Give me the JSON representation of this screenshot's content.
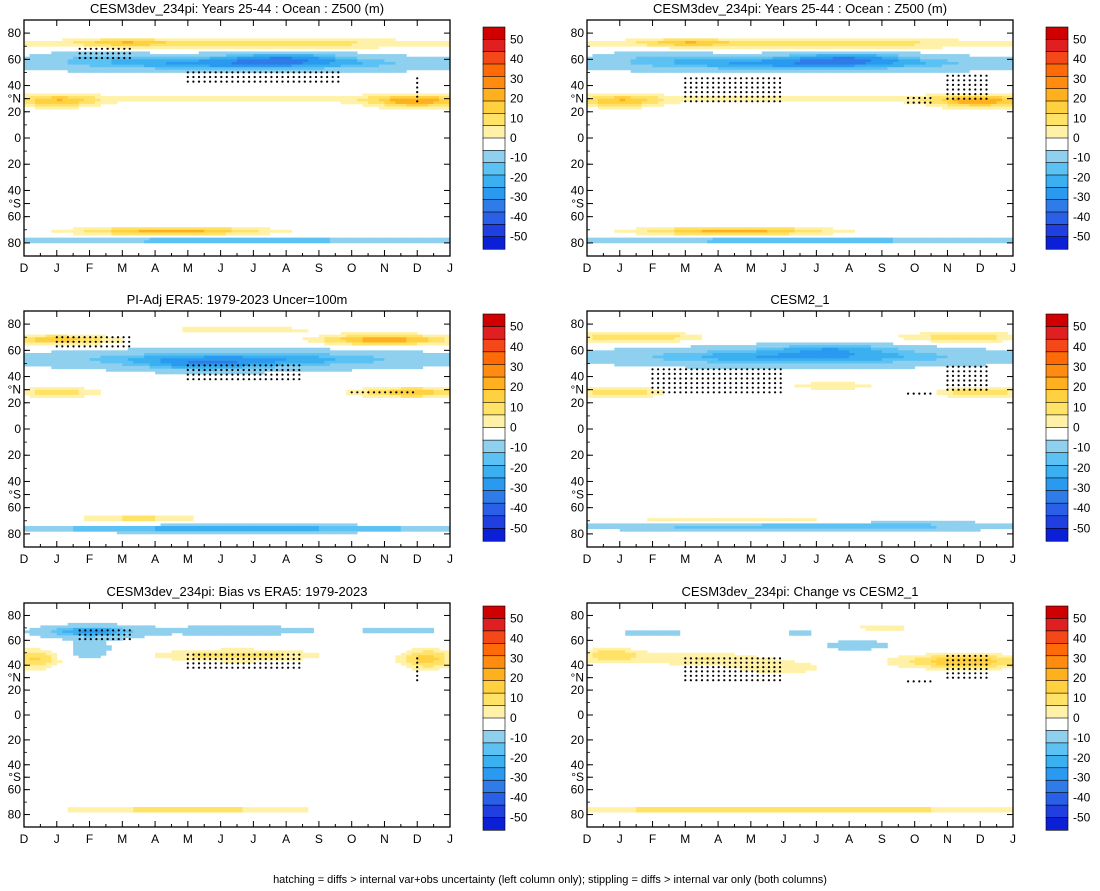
{
  "figure": {
    "caption": "hatching = diffs > internal var+obs uncertainty (left column only); stippling = diffs > internal var only (both columns)"
  },
  "colors": {
    "levels": [
      "#0a1fd6",
      "#1f3fe0",
      "#2a5fe8",
      "#2f7ce8",
      "#2a9af0",
      "#3ab0f0",
      "#5cc2f4",
      "#8fd0ee",
      "#ffffff",
      "#fff2a8",
      "#ffe266",
      "#ffd040",
      "#ffb01e",
      "#ff8c10",
      "#ff6a08",
      "#f54818",
      "#e02020",
      "#d00000"
    ]
  },
  "chart_data": [
    {
      "type": "heatmap",
      "title": "CESM3dev_234pi: Years 25-44 : Ocean : Z500 (m)",
      "x_ticks": [
        "D",
        "J",
        "F",
        "M",
        "A",
        "M",
        "J",
        "J",
        "A",
        "S",
        "O",
        "N",
        "D",
        "J"
      ],
      "y_ticks": [
        "80",
        "60",
        "40",
        "°N",
        "20",
        "0",
        "20",
        "40",
        "°S",
        "60",
        "80"
      ],
      "colorbar_ticks": [
        "50",
        "40",
        "30",
        "20",
        "10",
        "0",
        "-10",
        "-20",
        "-30",
        "-40",
        "-50"
      ],
      "vrange": [
        -55,
        55
      ],
      "features": [
        {
          "x": 6.5,
          "y": 57,
          "sx": 6.0,
          "sy": 6,
          "amp": -28
        },
        {
          "x": 8.0,
          "y": 62,
          "sx": 1.8,
          "sy": 5,
          "amp": -14
        },
        {
          "x": 2.0,
          "y": 63,
          "sx": 1.5,
          "sy": 5,
          "amp": -8
        },
        {
          "x": 6.5,
          "y": 72,
          "sx": 7.0,
          "sy": 4,
          "amp": 14
        },
        {
          "x": 3.0,
          "y": 73,
          "sx": 1.2,
          "sy": 3,
          "amp": 10
        },
        {
          "x": 1.0,
          "y": 28,
          "sx": 1.3,
          "sy": 5,
          "amp": 18
        },
        {
          "x": 12.0,
          "y": 28,
          "sx": 1.5,
          "sy": 5,
          "amp": 22
        },
        {
          "x": 6.5,
          "y": 30,
          "sx": 5.5,
          "sy": 4,
          "amp": 8
        },
        {
          "x": 4.5,
          "y": -71,
          "sx": 3.0,
          "sy": 3,
          "amp": 22
        },
        {
          "x": 6.5,
          "y": -78,
          "sx": 8.0,
          "sy": 2,
          "amp": -22
        }
      ],
      "stipples": [
        {
          "m0": 1.7,
          "m1": 3.3,
          "l0": 61,
          "l1": 68
        },
        {
          "m0": 5.0,
          "m1": 9.6,
          "l0": 43,
          "l1": 50
        },
        {
          "m0": 12.0,
          "m1": 12.0,
          "l0": 28,
          "l1": 48
        }
      ]
    },
    {
      "type": "heatmap",
      "title": "CESM3dev_234pi: Years 25-44 : Ocean : Z500 (m)",
      "x_ticks": [
        "D",
        "J",
        "F",
        "M",
        "A",
        "M",
        "J",
        "J",
        "A",
        "S",
        "O",
        "N",
        "D",
        "J"
      ],
      "y_ticks": [
        "80",
        "60",
        "40",
        "°N",
        "20",
        "0",
        "20",
        "40",
        "°S",
        "60",
        "80"
      ],
      "colorbar_ticks": [
        "50",
        "40",
        "30",
        "20",
        "10",
        "0",
        "-10",
        "-20",
        "-30",
        "-40",
        "-50"
      ],
      "vrange": [
        -55,
        55
      ],
      "features": [
        {
          "x": 6.5,
          "y": 57,
          "sx": 6.0,
          "sy": 6,
          "amp": -28
        },
        {
          "x": 8.0,
          "y": 62,
          "sx": 1.8,
          "sy": 5,
          "amp": -14
        },
        {
          "x": 2.0,
          "y": 63,
          "sx": 1.5,
          "sy": 5,
          "amp": -8
        },
        {
          "x": 6.5,
          "y": 72,
          "sx": 7.0,
          "sy": 4,
          "amp": 14
        },
        {
          "x": 3.0,
          "y": 73,
          "sx": 1.2,
          "sy": 3,
          "amp": 10
        },
        {
          "x": 1.0,
          "y": 28,
          "sx": 1.3,
          "sy": 5,
          "amp": 18
        },
        {
          "x": 12.0,
          "y": 28,
          "sx": 1.5,
          "sy": 5,
          "amp": 22
        },
        {
          "x": 6.5,
          "y": 30,
          "sx": 5.5,
          "sy": 4,
          "amp": 8
        },
        {
          "x": 4.5,
          "y": -71,
          "sx": 3.0,
          "sy": 3,
          "amp": 22
        },
        {
          "x": 6.5,
          "y": -78,
          "sx": 8.0,
          "sy": 2,
          "amp": -22
        }
      ],
      "stipples": [
        {
          "m0": 3.0,
          "m1": 6.0,
          "l0": 28,
          "l1": 48
        },
        {
          "m0": 11.0,
          "m1": 12.2,
          "l0": 30,
          "l1": 50
        },
        {
          "m0": 9.8,
          "m1": 10.6,
          "l0": 27,
          "l1": 32
        }
      ]
    },
    {
      "type": "heatmap",
      "title": "PI-Adj ERA5: 1979-2023 Uncer=100m",
      "x_ticks": [
        "D",
        "J",
        "F",
        "M",
        "A",
        "M",
        "J",
        "J",
        "A",
        "S",
        "O",
        "N",
        "D",
        "J"
      ],
      "y_ticks": [
        "80",
        "60",
        "40",
        "°N",
        "20",
        "0",
        "20",
        "40",
        "°S",
        "60",
        "80"
      ],
      "colorbar_ticks": [
        "50",
        "40",
        "30",
        "20",
        "10",
        "0",
        "-10",
        "-20",
        "-30",
        "-40",
        "-50"
      ],
      "vrange": [
        -55,
        55
      ],
      "features": [
        {
          "x": 6.5,
          "y": 53,
          "sx": 6.0,
          "sy": 7,
          "amp": -26
        },
        {
          "x": 5.5,
          "y": 48,
          "sx": 1.8,
          "sy": 5,
          "amp": -12
        },
        {
          "x": 1.0,
          "y": 68,
          "sx": 1.8,
          "sy": 4,
          "amp": 18
        },
        {
          "x": 11.0,
          "y": 68,
          "sx": 2.0,
          "sy": 4,
          "amp": 24
        },
        {
          "x": 6.5,
          "y": 76,
          "sx": 6.0,
          "sy": 3,
          "amp": 6
        },
        {
          "x": 1.0,
          "y": 28,
          "sx": 1.3,
          "sy": 4,
          "amp": 14
        },
        {
          "x": 11.8,
          "y": 28,
          "sx": 1.8,
          "sy": 4,
          "amp": 18
        },
        {
          "x": 3.5,
          "y": -68,
          "sx": 2.0,
          "sy": 3,
          "amp": 12
        },
        {
          "x": 6.5,
          "y": -76,
          "sx": 8.0,
          "sy": 2.5,
          "amp": -26
        }
      ],
      "stipples": [
        {
          "m0": 1.0,
          "m1": 3.3,
          "l0": 63,
          "l1": 70
        },
        {
          "m0": 5.0,
          "m1": 8.5,
          "l0": 38,
          "l1": 50
        },
        {
          "m0": 10.0,
          "m1": 12.0,
          "l0": 28,
          "l1": 30
        }
      ]
    },
    {
      "type": "heatmap",
      "title": "CESM2_1",
      "x_ticks": [
        "D",
        "J",
        "F",
        "M",
        "A",
        "M",
        "J",
        "J",
        "A",
        "S",
        "O",
        "N",
        "D",
        "J"
      ],
      "y_ticks": [
        "80",
        "60",
        "40",
        "°N",
        "20",
        "0",
        "20",
        "40",
        "°S",
        "60",
        "80"
      ],
      "colorbar_ticks": [
        "50",
        "40",
        "30",
        "20",
        "10",
        "0",
        "-10",
        "-20",
        "-30",
        "-40",
        "-50"
      ],
      "vrange": [
        -55,
        55
      ],
      "features": [
        {
          "x": 6.5,
          "y": 55,
          "sx": 6.0,
          "sy": 7,
          "amp": -26
        },
        {
          "x": 7.5,
          "y": 62,
          "sx": 2.0,
          "sy": 4,
          "amp": -14
        },
        {
          "x": 1.5,
          "y": 70,
          "sx": 2.0,
          "sy": 4,
          "amp": 16
        },
        {
          "x": 11.5,
          "y": 70,
          "sx": 2.0,
          "sy": 4,
          "amp": 14
        },
        {
          "x": 1.0,
          "y": 28,
          "sx": 1.3,
          "sy": 4,
          "amp": 16
        },
        {
          "x": 12.0,
          "y": 28,
          "sx": 1.3,
          "sy": 4,
          "amp": 16
        },
        {
          "x": 7.5,
          "y": 33,
          "sx": 1.5,
          "sy": 3,
          "amp": 10
        },
        {
          "x": 4.5,
          "y": -70,
          "sx": 3.5,
          "sy": 3,
          "amp": 12
        },
        {
          "x": 6.5,
          "y": -74,
          "sx": 8.0,
          "sy": 3,
          "amp": -22
        }
      ],
      "stipples": [
        {
          "m0": 2.0,
          "m1": 6.0,
          "l0": 28,
          "l1": 48
        },
        {
          "m0": 11.0,
          "m1": 12.2,
          "l0": 30,
          "l1": 50
        },
        {
          "m0": 9.8,
          "m1": 10.6,
          "l0": 27,
          "l1": 28
        }
      ]
    },
    {
      "type": "heatmap",
      "title": "CESM3dev_234pi: Bias vs ERA5: 1979-2023",
      "x_ticks": [
        "D",
        "J",
        "F",
        "M",
        "A",
        "M",
        "J",
        "J",
        "A",
        "S",
        "O",
        "N",
        "D",
        "J"
      ],
      "y_ticks": [
        "80",
        "60",
        "40",
        "°N",
        "20",
        "0",
        "20",
        "40",
        "°S",
        "60",
        "80"
      ],
      "colorbar_ticks": [
        "50",
        "40",
        "30",
        "20",
        "10",
        "0",
        "-10",
        "-20",
        "-30",
        "-40",
        "-50"
      ],
      "vrange": [
        -55,
        55
      ],
      "features": [
        {
          "x": 2.0,
          "y": 67,
          "sx": 1.5,
          "sy": 5,
          "amp": -26
        },
        {
          "x": 2.0,
          "y": 52,
          "sx": 0.8,
          "sy": 8,
          "amp": -10
        },
        {
          "x": 6.5,
          "y": 68,
          "sx": 2.5,
          "sy": 4,
          "amp": -12
        },
        {
          "x": 11.5,
          "y": 68,
          "sx": 1.5,
          "sy": 4,
          "amp": -8
        },
        {
          "x": 6.5,
          "y": 48,
          "sx": 2.5,
          "sy": 5,
          "amp": 14
        },
        {
          "x": 0.3,
          "y": 45,
          "sx": 0.8,
          "sy": 8,
          "amp": 16
        },
        {
          "x": 12.3,
          "y": 45,
          "sx": 0.8,
          "sy": 8,
          "amp": 18
        },
        {
          "x": 5.0,
          "y": -76,
          "sx": 4.0,
          "sy": 2.5,
          "amp": 14
        }
      ],
      "stipples": [
        {
          "m0": 1.7,
          "m1": 3.3,
          "l0": 61,
          "l1": 68
        },
        {
          "m0": 5.0,
          "m1": 8.5,
          "l0": 38,
          "l1": 50
        },
        {
          "m0": 12.0,
          "m1": 12.0,
          "l0": 28,
          "l1": 48
        }
      ]
    },
    {
      "type": "heatmap",
      "title": "CESM3dev_234pi: Change vs CESM2_1",
      "x_ticks": [
        "D",
        "J",
        "F",
        "M",
        "A",
        "M",
        "J",
        "J",
        "A",
        "S",
        "O",
        "N",
        "D",
        "J"
      ],
      "y_ticks": [
        "80",
        "60",
        "40",
        "°N",
        "20",
        "0",
        "20",
        "40",
        "°S",
        "60",
        "80"
      ],
      "colorbar_ticks": [
        "50",
        "40",
        "30",
        "20",
        "10",
        "0",
        "-10",
        "-20",
        "-30",
        "-40",
        "-50"
      ],
      "vrange": [
        -55,
        55
      ],
      "features": [
        {
          "x": 0.7,
          "y": 48,
          "sx": 1.0,
          "sy": 6,
          "amp": 14
        },
        {
          "x": 3.5,
          "y": 45,
          "sx": 2.0,
          "sy": 6,
          "amp": 10
        },
        {
          "x": 11.5,
          "y": 43,
          "sx": 2.0,
          "sy": 6,
          "amp": 20
        },
        {
          "x": 6.0,
          "y": 38,
          "sx": 1.5,
          "sy": 6,
          "amp": 8
        },
        {
          "x": 8.2,
          "y": 56,
          "sx": 1.0,
          "sy": 4,
          "amp": -12
        },
        {
          "x": 2.0,
          "y": 66,
          "sx": 1.3,
          "sy": 3,
          "amp": -8
        },
        {
          "x": 6.5,
          "y": 66,
          "sx": 1.3,
          "sy": 3,
          "amp": -6
        },
        {
          "x": 9.0,
          "y": 70,
          "sx": 1.0,
          "sy": 3,
          "amp": 8
        },
        {
          "x": 6.0,
          "y": -76,
          "sx": 8.0,
          "sy": 2.5,
          "amp": 16
        }
      ],
      "stipples": [
        {
          "m0": 3.0,
          "m1": 6.0,
          "l0": 28,
          "l1": 48
        },
        {
          "m0": 11.0,
          "m1": 12.2,
          "l0": 30,
          "l1": 50
        },
        {
          "m0": 9.8,
          "m1": 10.6,
          "l0": 27,
          "l1": 28
        }
      ]
    }
  ]
}
